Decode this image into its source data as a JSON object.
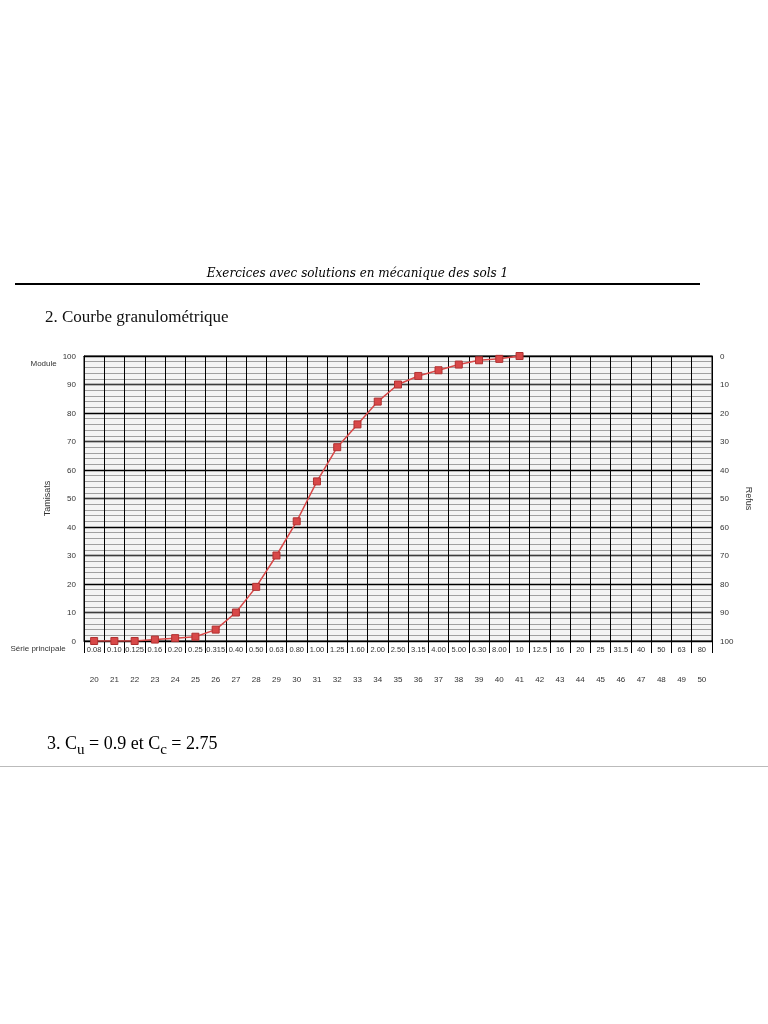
{
  "chart_data": {
    "type": "line",
    "title": "2. Courbe granulométrique",
    "xlabel": "Série principale",
    "ylabel": "Tamisats",
    "y2label": "Refus",
    "x2label": "Module",
    "annotations": [
      "Exercices avec solutions en mécanique des sols 1",
      "3.  C$_{u}$ = 0.9  et  C$_{c}$ = 2.75"
    ],
    "categories": [
      "0.08",
      "0.10",
      "0.125",
      "0.16",
      "0.20",
      "0.25",
      "0.315",
      "0.40",
      "0.50",
      "0.63",
      "0.80",
      "1.00",
      "1.25",
      "1.60",
      "2.00",
      "2.50",
      "3.15",
      "4.00",
      "5.00",
      "6.30",
      "8.00",
      "10",
      "12.5",
      "16",
      "20",
      "25",
      "31.5",
      "40",
      "50",
      "63",
      "80"
    ],
    "series": [
      {
        "color": "#d84848",
        "values": [
          0,
          0,
          0,
          0.5,
          1,
          1.5,
          4,
          10,
          19,
          30,
          42,
          56,
          68,
          76,
          84,
          90,
          93,
          95,
          97,
          98.5,
          99,
          100,
          null,
          null,
          null,
          null,
          null,
          null,
          null,
          null,
          null
        ]
      }
    ],
    "ylim": [
      0,
      100
    ],
    "yticks": [
      0,
      10,
      20,
      30,
      40,
      50,
      60,
      70,
      80,
      90,
      100
    ],
    "y2lim": [
      100,
      0
    ],
    "y2ticks": [
      0,
      10,
      20,
      30,
      40,
      50,
      60,
      70,
      80,
      90,
      100
    ],
    "x2lim": [
      19.5,
      50.5
    ],
    "x2ticks": [
      20,
      21,
      22,
      23,
      24,
      25,
      26,
      27,
      28,
      29,
      30,
      31,
      32,
      33,
      34,
      35,
      36,
      37,
      38,
      39,
      40,
      41,
      42,
      43,
      44,
      45,
      46,
      47,
      48,
      49,
      50
    ],
    "grid": true,
    "marker": "square",
    "line_style": "solid"
  }
}
